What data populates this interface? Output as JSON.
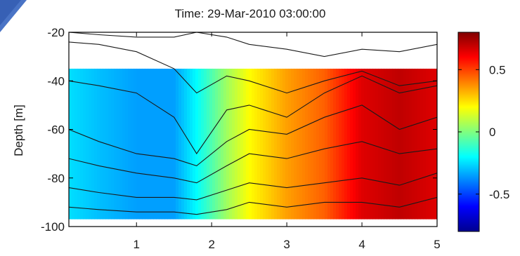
{
  "chart_data": {
    "type": "heatmap",
    "title": "Time: 29-Mar-2010 03:00:00",
    "xlabel": "",
    "ylabel": "Depth [m]",
    "xlim": [
      0.1,
      5.0
    ],
    "ylim": [
      -100,
      -20
    ],
    "x_ticks": [
      1,
      2,
      3,
      4,
      5
    ],
    "y_ticks": [
      -20,
      -40,
      -60,
      -80,
      -100
    ],
    "colorbar": {
      "range": [
        -0.8,
        0.8
      ],
      "ticks": [
        0.5,
        0,
        -0.5
      ],
      "colormap": "jet"
    },
    "field_depth_range": [
      -35,
      -97
    ],
    "anomaly_profile": {
      "x": [
        0.1,
        0.5,
        1.0,
        1.5,
        1.8,
        2.2,
        2.5,
        3.0,
        3.5,
        4.0,
        4.5,
        5.0
      ],
      "values": [
        -0.25,
        -0.3,
        -0.35,
        -0.35,
        -0.2,
        0.05,
        0.2,
        0.35,
        0.45,
        0.65,
        0.7,
        0.65
      ]
    },
    "isolines": [
      {
        "x": [
          0.1,
          0.5,
          1.0,
          1.5,
          1.8,
          2.2,
          2.5,
          3.0,
          3.5,
          4.0,
          4.5,
          5.0
        ],
        "y": [
          -20,
          -21,
          -22,
          -22,
          -20,
          -22,
          -25,
          -27,
          -30,
          -27,
          -28,
          -25
        ]
      },
      {
        "x": [
          0.1,
          0.5,
          1.0,
          1.5,
          1.8,
          2.2,
          2.5,
          3.0,
          3.5,
          4.0,
          4.5,
          5.0
        ],
        "y": [
          -24,
          -25,
          -28,
          -35,
          -45,
          -38,
          -40,
          -45,
          -40,
          -36,
          -42,
          -40
        ]
      },
      {
        "x": [
          0.1,
          0.5,
          1.0,
          1.5,
          1.8,
          2.2,
          2.5,
          3.0,
          3.5,
          4.0,
          4.5,
          5.0
        ],
        "y": [
          -40,
          -42,
          -45,
          -55,
          -70,
          -52,
          -50,
          -55,
          -45,
          -38,
          -45,
          -42
        ]
      },
      {
        "x": [
          0.1,
          0.5,
          1.0,
          1.5,
          1.8,
          2.2,
          2.5,
          3.0,
          3.5,
          4.0,
          4.5,
          5.0
        ],
        "y": [
          -60,
          -65,
          -70,
          -72,
          -75,
          -65,
          -60,
          -62,
          -55,
          -50,
          -60,
          -55
        ]
      },
      {
        "x": [
          0.1,
          0.5,
          1.0,
          1.5,
          1.8,
          2.2,
          2.5,
          3.0,
          3.5,
          4.0,
          4.5,
          5.0
        ],
        "y": [
          -72,
          -75,
          -78,
          -80,
          -82,
          -75,
          -70,
          -72,
          -68,
          -65,
          -70,
          -68
        ]
      },
      {
        "x": [
          0.1,
          0.5,
          1.0,
          1.5,
          1.8,
          2.2,
          2.5,
          3.0,
          3.5,
          4.0,
          4.5,
          5.0
        ],
        "y": [
          -84,
          -86,
          -88,
          -88,
          -89,
          -85,
          -82,
          -84,
          -82,
          -80,
          -83,
          -78
        ]
      },
      {
        "x": [
          0.1,
          0.5,
          1.0,
          1.5,
          1.8,
          2.2,
          2.5,
          3.0,
          3.5,
          4.0,
          4.5,
          5.0
        ],
        "y": [
          -92,
          -93,
          -94,
          -94,
          -95,
          -93,
          -90,
          -92,
          -90,
          -90,
          -92,
          -88
        ]
      }
    ]
  }
}
